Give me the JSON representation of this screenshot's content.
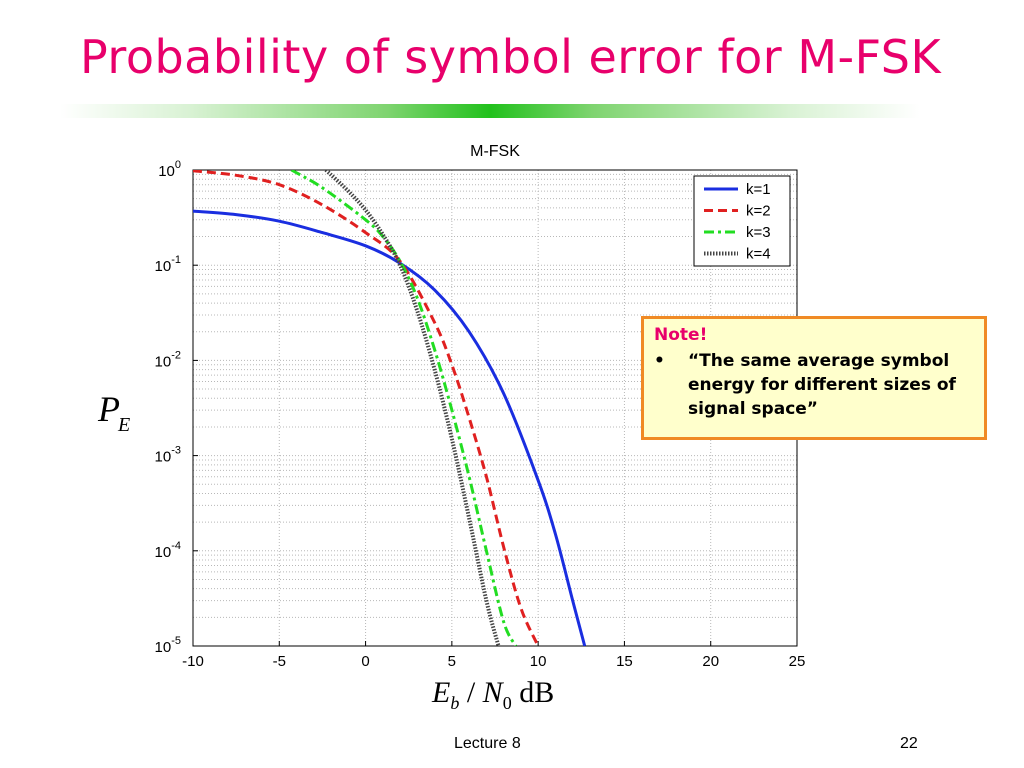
{
  "slide": {
    "title": "Probability of symbol error for M-FSK",
    "footer_center": "Lecture 8",
    "page_number": "22",
    "accent_color": "#e8006b",
    "bar_color": "#21c11c"
  },
  "axes_labels": {
    "y_main": "P",
    "y_sub": "E",
    "x_e": "E",
    "x_b": "b",
    "x_slash": " / ",
    "x_n": "N",
    "x_zero": "0",
    "x_unit": " dB"
  },
  "note": {
    "title": "Note!",
    "bullet": "•",
    "text": "“The same average symbol energy for different sizes of signal space”",
    "border_color": "#f08a24",
    "bg_color": "#ffffcc"
  },
  "chart_data": {
    "type": "line",
    "title": "M-FSK",
    "xlabel": "Eb/N0 dB",
    "ylabel": "PE",
    "yscale": "log",
    "xlim": [
      -10,
      25
    ],
    "ylim": [
      1e-05,
      1
    ],
    "xticks": [
      -10,
      -5,
      0,
      5,
      10,
      15,
      20,
      25
    ],
    "yticks": [
      {
        "value": 1,
        "base": "10",
        "exp": "0"
      },
      {
        "value": 0.1,
        "base": "10",
        "exp": "-1"
      },
      {
        "value": 0.01,
        "base": "10",
        "exp": "-2"
      },
      {
        "value": 0.001,
        "base": "10",
        "exp": "-3"
      },
      {
        "value": 0.0001,
        "base": "10",
        "exp": "-4"
      },
      {
        "value": 1e-05,
        "base": "10",
        "exp": "-5"
      }
    ],
    "grid": true,
    "legend_position": "top-right",
    "series": [
      {
        "name": "k=1",
        "color": "#1a2ee0",
        "dash": "solid",
        "x": [
          -10,
          -7.5,
          -5,
          -2.5,
          0,
          2,
          4,
          6,
          8,
          10,
          11,
          12,
          12.7
        ],
        "y": [
          0.37,
          0.34,
          0.29,
          0.22,
          0.16,
          0.105,
          0.055,
          0.02,
          0.0045,
          0.00055,
          0.00015,
          3e-05,
          1e-05
        ]
      },
      {
        "name": "k=2",
        "color": "#e02020",
        "dash": "dashed",
        "x": [
          -10,
          -7.5,
          -5,
          -2.5,
          0,
          2,
          4,
          5,
          6,
          7,
          8,
          9,
          10
        ],
        "y": [
          0.98,
          0.88,
          0.7,
          0.43,
          0.22,
          0.11,
          0.025,
          0.009,
          0.0025,
          0.0006,
          0.00011,
          2.5e-05,
          1e-05
        ]
      },
      {
        "name": "k=3",
        "color": "#22dd22",
        "dash": "dashdot",
        "x": [
          -4.3,
          -2.5,
          0,
          1,
          2,
          3,
          4,
          5,
          6,
          7,
          8,
          8.7
        ],
        "y": [
          1.0,
          0.65,
          0.3,
          0.2,
          0.11,
          0.045,
          0.013,
          0.003,
          0.0006,
          0.0001,
          1.8e-05,
          1e-05
        ]
      },
      {
        "name": "k=4",
        "color": "#444444",
        "dash": "dotted",
        "x": [
          -2.3,
          -1,
          0,
          1,
          2,
          3,
          4,
          5,
          6,
          7,
          7.7
        ],
        "y": [
          1.0,
          0.6,
          0.38,
          0.21,
          0.1,
          0.033,
          0.008,
          0.0015,
          0.00022,
          3e-05,
          1e-05
        ]
      }
    ]
  }
}
